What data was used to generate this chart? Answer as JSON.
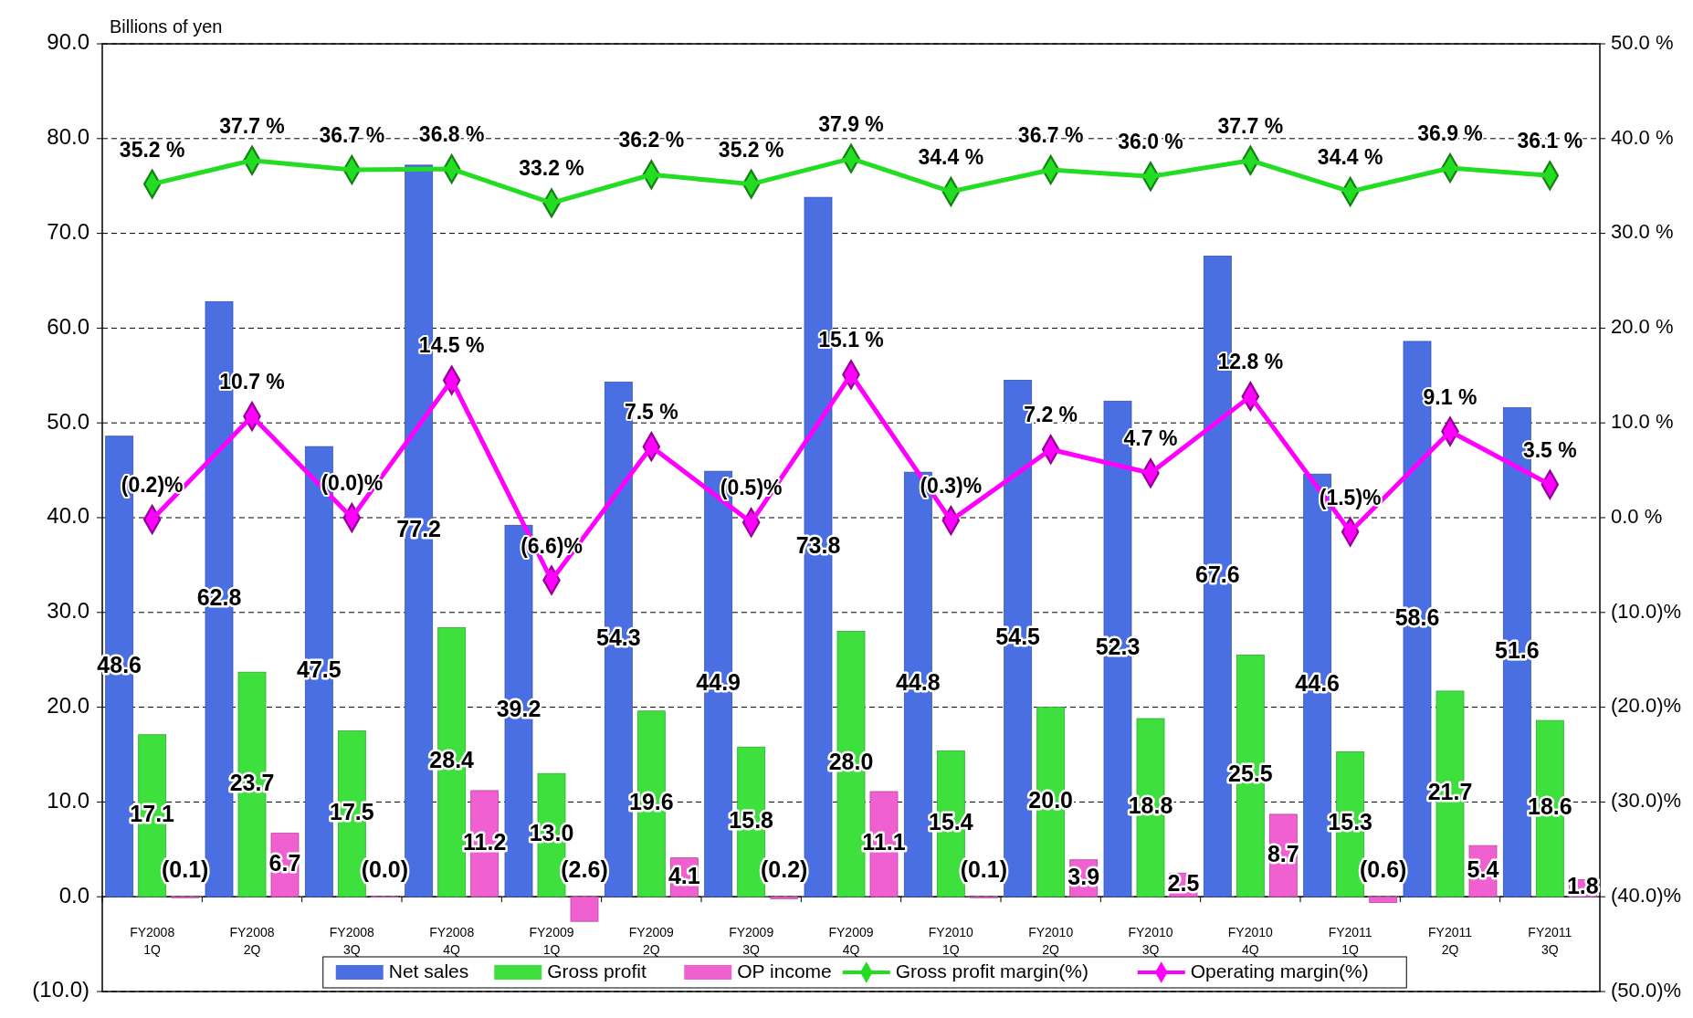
{
  "chart_data": {
    "type": "bar",
    "ylabel": "Billions of yen",
    "categories": [
      "FY2008\n1Q",
      "FY2008\n2Q",
      "FY2008\n3Q",
      "FY2008\n4Q",
      "FY2009\n1Q",
      "FY2009\n2Q",
      "FY2009\n3Q",
      "FY2009\n4Q",
      "FY2010\n1Q",
      "FY2010\n2Q",
      "FY2010\n3Q",
      "FY2010\n4Q",
      "FY2011\n1Q",
      "FY2011\n2Q",
      "FY2011\n3Q"
    ],
    "series": [
      {
        "name": "Net sales",
        "color": "#4a6fe3",
        "values": [
          48.6,
          62.8,
          47.5,
          77.2,
          39.2,
          54.3,
          44.9,
          73.8,
          44.8,
          54.5,
          52.3,
          67.6,
          44.6,
          58.6,
          51.6
        ],
        "value_labels": [
          "48.6",
          "62.8",
          "47.5",
          "77.2",
          "39.2",
          "54.3",
          "44.9",
          "73.8",
          "44.8",
          "54.5",
          "52.3",
          "67.6",
          "44.6",
          "58.6",
          "51.6"
        ]
      },
      {
        "name": "Gross profit",
        "color": "#3ee03e",
        "values": [
          17.1,
          23.7,
          17.5,
          28.4,
          13.0,
          19.6,
          15.8,
          28.0,
          15.4,
          20.0,
          18.8,
          25.5,
          15.3,
          21.7,
          18.6
        ],
        "value_labels": [
          "17.1",
          "23.7",
          "17.5",
          "28.4",
          "13.0",
          "19.6",
          "15.8",
          "28.0",
          "15.4",
          "20.0",
          "18.8",
          "25.5",
          "15.3",
          "21.7",
          "18.6"
        ]
      },
      {
        "name": "OP income",
        "color": "#f060d0",
        "values": [
          -0.1,
          6.7,
          0.0,
          11.2,
          -2.6,
          4.1,
          -0.2,
          11.1,
          -0.1,
          3.9,
          2.5,
          8.7,
          -0.6,
          5.4,
          1.8
        ],
        "value_labels": [
          "(0.1)",
          "6.7",
          "(0.0)",
          "11.2",
          "(2.6)",
          "4.1",
          "(0.2)",
          "11.1",
          "(0.1)",
          "3.9",
          "2.5",
          "8.7",
          "(0.6)",
          "5.4",
          "1.8"
        ]
      },
      {
        "name": "Gross profit margin(%)",
        "type": "line",
        "axis": "y2",
        "color": "#22dd22",
        "values": [
          35.2,
          37.7,
          36.7,
          36.8,
          33.2,
          36.2,
          35.2,
          37.9,
          34.4,
          36.7,
          36.0,
          37.7,
          34.4,
          36.9,
          36.1
        ],
        "value_labels": [
          "35.2 %",
          "37.7 %",
          "36.7 %",
          "36.8 %",
          "33.2 %",
          "36.2 %",
          "35.2 %",
          "37.9 %",
          "34.4 %",
          "36.7 %",
          "36.0 %",
          "37.7 %",
          "34.4 %",
          "36.9 %",
          "36.1 %"
        ]
      },
      {
        "name": "Operating margin(%)",
        "type": "line",
        "axis": "y2",
        "color": "#ff00ff",
        "values": [
          -0.2,
          10.7,
          -0.0,
          14.5,
          -6.6,
          7.5,
          -0.5,
          15.1,
          -0.3,
          7.2,
          4.7,
          12.8,
          -1.5,
          9.1,
          3.5
        ],
        "value_labels": [
          "(0.2)%",
          "10.7 %",
          "(0.0)%",
          "14.5 %",
          "(6.6)%",
          "7.5 %",
          "(0.5)%",
          "15.1 %",
          "(0.3)%",
          "7.2 %",
          "4.7 %",
          "12.8 %",
          "(1.5)%",
          "9.1 %",
          "3.5 %"
        ]
      }
    ],
    "ylim": [
      -10,
      90
    ],
    "yticks": [
      {
        "value": -10,
        "label": "(10.0)"
      },
      {
        "value": 0,
        "label": "0.0"
      },
      {
        "value": 10,
        "label": "10.0"
      },
      {
        "value": 20,
        "label": "20.0"
      },
      {
        "value": 30,
        "label": "30.0"
      },
      {
        "value": 40,
        "label": "40.0"
      },
      {
        "value": 50,
        "label": "50.0"
      },
      {
        "value": 60,
        "label": "60.0"
      },
      {
        "value": 70,
        "label": "70.0"
      },
      {
        "value": 80,
        "label": "80.0"
      },
      {
        "value": 90,
        "label": "90.0"
      }
    ],
    "y2lim": [
      -50,
      50
    ],
    "y2ticks": [
      {
        "value": -50,
        "label": "(50.0)%"
      },
      {
        "value": -40,
        "label": "(40.0)%"
      },
      {
        "value": -30,
        "label": "(30.0)%"
      },
      {
        "value": -20,
        "label": "(20.0)%"
      },
      {
        "value": -10,
        "label": "(10.0)%"
      },
      {
        "value": 0,
        "label": "0.0 %"
      },
      {
        "value": 10,
        "label": "10.0 %"
      },
      {
        "value": 20,
        "label": "20.0 %"
      },
      {
        "value": 30,
        "label": "30.0 %"
      },
      {
        "value": 40,
        "label": "40.0 %"
      },
      {
        "value": 50,
        "label": "50.0 %"
      }
    ],
    "grid": "y",
    "legend": "bottom",
    "marker": "diamond"
  }
}
